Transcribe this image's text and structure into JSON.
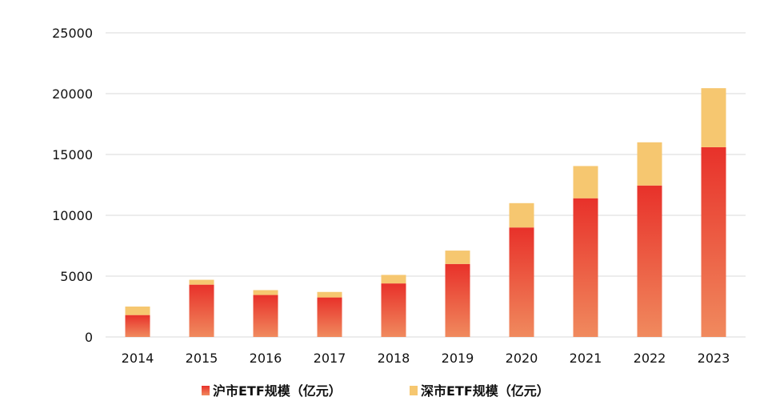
{
  "chart_data": {
    "type": "bar",
    "stacked": true,
    "categories": [
      "2014",
      "2015",
      "2016",
      "2017",
      "2018",
      "2019",
      "2020",
      "2021",
      "2022",
      "2023"
    ],
    "series": [
      {
        "name": "沪市ETF规模（亿元）",
        "values": [
          1800,
          4300,
          3450,
          3250,
          4400,
          6000,
          9000,
          11400,
          12450,
          15600
        ],
        "color_top": "#e8312a",
        "color_bottom": "#f08a5e"
      },
      {
        "name": "深市ETF规模（亿元）",
        "values": [
          700,
          400,
          400,
          450,
          700,
          1100,
          2000,
          2650,
          3550,
          4850
        ],
        "color": "#f6c770"
      }
    ],
    "y_ticks": [
      "0",
      "5000",
      "10000",
      "15000",
      "20000",
      "25000"
    ],
    "ylim": [
      0,
      25000
    ],
    "grid": true,
    "legend_position": "bottom"
  }
}
